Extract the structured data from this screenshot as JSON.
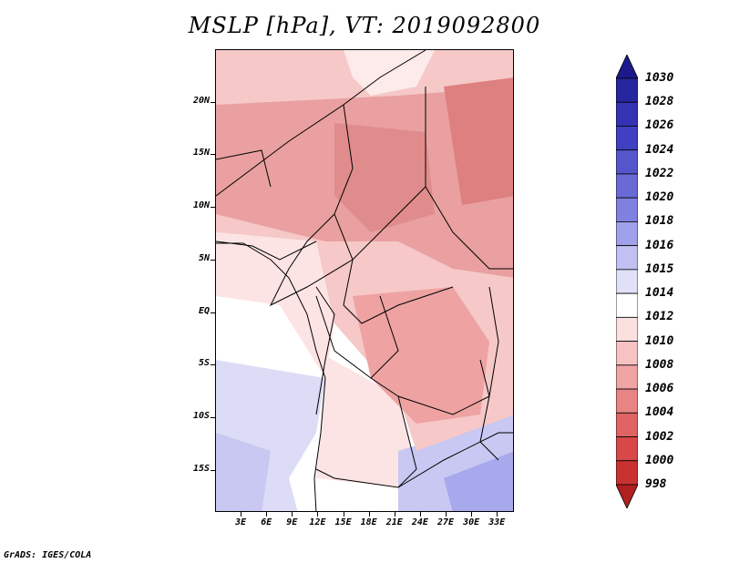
{
  "title": "MSLP [hPa], VT: 2019092800",
  "footer": "GrADS: IGES/COLA",
  "map": {
    "lat_labels": [
      "20N",
      "15N",
      "10N",
      "5N",
      "EQ",
      "5S",
      "10S",
      "15S"
    ],
    "lat_values": [
      20,
      15,
      10,
      5,
      0,
      -5,
      -10,
      -15
    ],
    "lon_labels": [
      "3E",
      "6E",
      "9E",
      "12E",
      "15E",
      "18E",
      "21E",
      "24E",
      "27E",
      "30E",
      "33E"
    ],
    "lon_values": [
      3,
      6,
      9,
      12,
      15,
      18,
      21,
      24,
      27,
      30,
      33
    ],
    "lon_range": [
      0,
      35
    ],
    "lat_range": [
      -19,
      25
    ]
  },
  "colorbar": {
    "labels": [
      "1030",
      "1028",
      "1026",
      "1024",
      "1022",
      "1020",
      "1018",
      "1016",
      "1015",
      "1014",
      "1012",
      "1010",
      "1008",
      "1006",
      "1004",
      "1002",
      "1000",
      "998"
    ],
    "colors": [
      "#1a1a8c",
      "#26269e",
      "#3333b3",
      "#4040c2",
      "#5555cc",
      "#6a6ad6",
      "#8080e0",
      "#a0a0eb",
      "#c0c0f2",
      "#e0e0f8",
      "#ffffff",
      "#fbe0e0",
      "#f6c2c2",
      "#f0a4a4",
      "#e88484",
      "#e06464",
      "#d84848",
      "#c83232",
      "#b02020"
    ]
  }
}
